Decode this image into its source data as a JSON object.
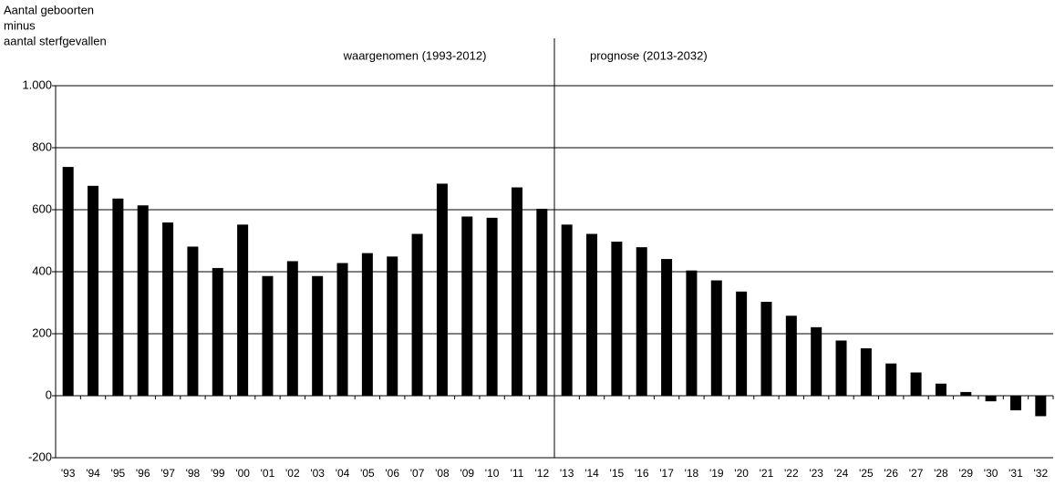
{
  "chart_data": {
    "type": "bar",
    "y_label": [
      "Aantal geboorten",
      "minus",
      "aantal sterfgevallen"
    ],
    "annotations": [
      "waargenomen (1993-2012)",
      "prognose (2013-2032)"
    ],
    "categories": [
      "'93",
      "'94",
      "'95",
      "'96",
      "'97",
      "'98",
      "'99",
      "'00",
      "'01",
      "'02",
      "'03",
      "'04",
      "'05",
      "'06",
      "'07",
      "'08",
      "'09",
      "'10",
      "'11",
      "'12",
      "'13",
      "'14",
      "'15",
      "'16",
      "'17",
      "'18",
      "'19",
      "'20",
      "'21",
      "'22",
      "'23",
      "'24",
      "'25",
      "'26",
      "'27",
      "'28",
      "'29",
      "'30",
      "'31",
      "'32"
    ],
    "values": [
      738,
      677,
      636,
      614,
      559,
      481,
      412,
      552,
      386,
      434,
      386,
      428,
      460,
      449,
      522,
      684,
      578,
      574,
      672,
      603,
      552,
      522,
      497,
      479,
      441,
      404,
      372,
      336,
      303,
      258,
      221,
      178,
      153,
      104,
      75,
      39,
      12,
      -18,
      -47,
      -66
    ],
    "color": "#000000",
    "ylim": [
      -200,
      1000
    ],
    "yticks": [
      -200,
      0,
      200,
      400,
      600,
      800,
      {
        "value": 1000,
        "label": "1.000"
      }
    ],
    "grid": true
  }
}
